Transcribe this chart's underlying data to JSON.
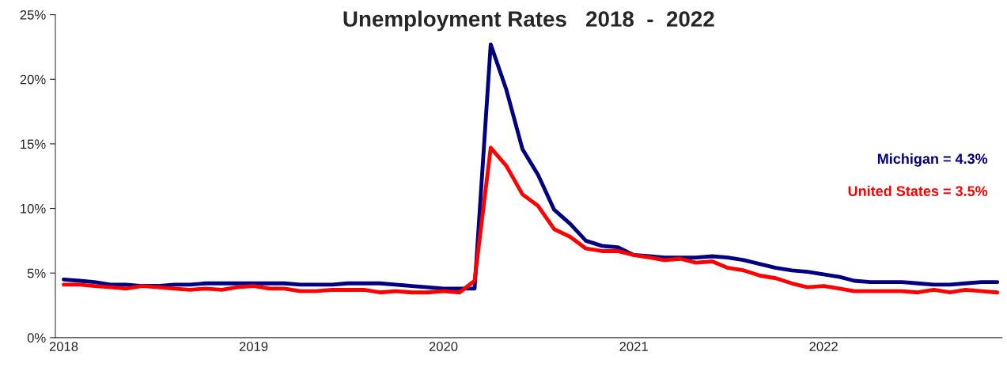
{
  "chart_data": {
    "type": "line",
    "title": "Unemployment Rates   2018  -  2022",
    "x": [
      "2018-01",
      "2018-02",
      "2018-03",
      "2018-04",
      "2018-05",
      "2018-06",
      "2018-07",
      "2018-08",
      "2018-09",
      "2018-10",
      "2018-11",
      "2018-12",
      "2019-01",
      "2019-02",
      "2019-03",
      "2019-04",
      "2019-05",
      "2019-06",
      "2019-07",
      "2019-08",
      "2019-09",
      "2019-10",
      "2019-11",
      "2019-12",
      "2020-01",
      "2020-02",
      "2020-03",
      "2020-04",
      "2020-05",
      "2020-06",
      "2020-07",
      "2020-08",
      "2020-09",
      "2020-10",
      "2020-11",
      "2020-12",
      "2021-01",
      "2021-02",
      "2021-03",
      "2021-04",
      "2021-05",
      "2021-06",
      "2021-07",
      "2021-08",
      "2021-09",
      "2021-10",
      "2021-11",
      "2021-12",
      "2022-01",
      "2022-02",
      "2022-03",
      "2022-04",
      "2022-05",
      "2022-06",
      "2022-07",
      "2022-08",
      "2022-09",
      "2022-10",
      "2022-11",
      "2022-12"
    ],
    "series": [
      {
        "name": "Michigan = 4.3%",
        "color": "#000080",
        "values": [
          4.5,
          4.4,
          4.3,
          4.1,
          4.1,
          4.0,
          4.0,
          4.1,
          4.1,
          4.2,
          4.2,
          4.2,
          4.2,
          4.2,
          4.2,
          4.1,
          4.1,
          4.1,
          4.2,
          4.2,
          4.2,
          4.1,
          4.0,
          3.9,
          3.8,
          3.8,
          3.8,
          22.7,
          19.2,
          14.6,
          12.6,
          9.9,
          8.8,
          7.5,
          7.1,
          7.0,
          6.4,
          6.3,
          6.2,
          6.2,
          6.2,
          6.3,
          6.2,
          6.0,
          5.7,
          5.4,
          5.2,
          5.1,
          4.9,
          4.7,
          4.4,
          4.3,
          4.3,
          4.3,
          4.2,
          4.1,
          4.1,
          4.2,
          4.3,
          4.3
        ]
      },
      {
        "name": "United States = 3.5%",
        "color": "#ff0000",
        "values": [
          4.1,
          4.1,
          4.0,
          3.9,
          3.8,
          4.0,
          3.9,
          3.8,
          3.7,
          3.8,
          3.7,
          3.9,
          4.0,
          3.8,
          3.8,
          3.6,
          3.6,
          3.7,
          3.7,
          3.7,
          3.5,
          3.6,
          3.5,
          3.5,
          3.6,
          3.5,
          4.4,
          14.7,
          13.3,
          11.1,
          10.2,
          8.4,
          7.8,
          6.9,
          6.7,
          6.7,
          6.4,
          6.2,
          6.0,
          6.1,
          5.8,
          5.9,
          5.4,
          5.2,
          4.8,
          4.6,
          4.2,
          3.9,
          4.0,
          3.8,
          3.6,
          3.6,
          3.6,
          3.6,
          3.5,
          3.7,
          3.5,
          3.7,
          3.6,
          3.5
        ]
      }
    ],
    "xlim": [
      "2017-12-16",
      "2022-12-10"
    ],
    "xticks": [
      {
        "value": "2018-01",
        "label": "2018"
      },
      {
        "value": "2019-01",
        "label": "2019"
      },
      {
        "value": "2020-01",
        "label": "2020"
      },
      {
        "value": "2021-01",
        "label": "2021"
      },
      {
        "value": "2022-01",
        "label": "2022"
      }
    ],
    "ylim": [
      0,
      25
    ],
    "yticks": [
      {
        "value": 0,
        "label": "0%"
      },
      {
        "value": 5,
        "label": "5%"
      },
      {
        "value": 10,
        "label": "10%"
      },
      {
        "value": 15,
        "label": "15%"
      },
      {
        "value": 20,
        "label": "20%"
      },
      {
        "value": 25,
        "label": "25%"
      }
    ],
    "grid": false,
    "legend": "right",
    "marker": "none",
    "line_style": "solid"
  }
}
